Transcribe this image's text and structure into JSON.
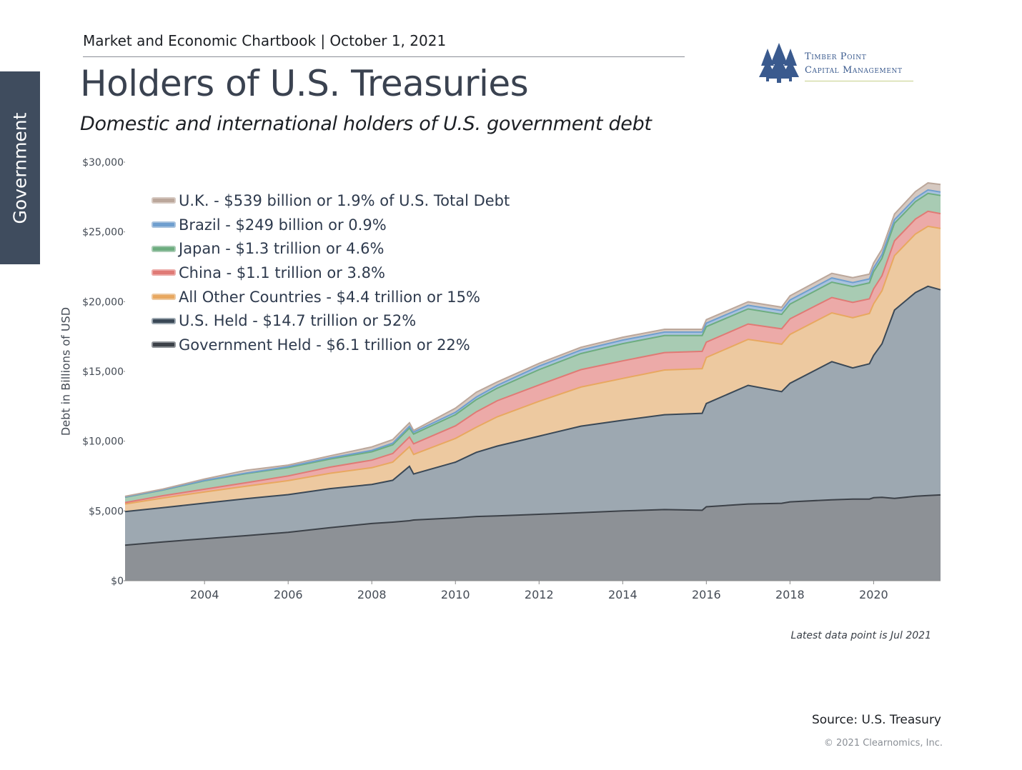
{
  "side_tab": "Government",
  "header": {
    "chartbook": "Market and Economic Chartbook | October 1, 2021",
    "title": "Holders of U.S. Treasuries",
    "subtitle": "Domestic and international holders of U.S. government debt"
  },
  "logo": {
    "line1": "Timber Point",
    "line2": "Capital Management",
    "color": "#3a5a8e"
  },
  "footer": {
    "note": "Latest data point is Jul 2021",
    "source": "Source: U.S. Treasury",
    "copyright": "© 2021 Clearnomics, Inc."
  },
  "chart_data": {
    "type": "area",
    "stacked": true,
    "ylabel": "Debt in Billions of USD",
    "ylim": [
      0,
      30000
    ],
    "xlim": [
      2002.1,
      2021.6
    ],
    "y_ticks": [
      0,
      5000,
      10000,
      15000,
      20000,
      25000,
      30000
    ],
    "y_tick_labels": [
      "$0",
      "$5,000",
      "$10,000",
      "$15,000",
      "$20,000",
      "$25,000",
      "$30,000"
    ],
    "x_ticks": [
      2004,
      2006,
      2008,
      2010,
      2012,
      2014,
      2016,
      2018,
      2020
    ],
    "x_tick_labels": [
      "2004",
      "2006",
      "2008",
      "2010",
      "2012",
      "2014",
      "2016",
      "2018",
      "2020"
    ],
    "legend_position": "top-left",
    "x": [
      2002.1,
      2003,
      2004,
      2005,
      2006,
      2007,
      2008,
      2008.5,
      2008.9,
      2009,
      2010,
      2010.5,
      2011,
      2012,
      2013,
      2014,
      2015,
      2015.9,
      2016,
      2017,
      2017.8,
      2018,
      2019,
      2019.5,
      2019.9,
      2020,
      2020.2,
      2020.5,
      2021,
      2021.3,
      2021.6
    ],
    "series": [
      {
        "name": "Government Held - $6.1 trillion or 22%",
        "color": "#8d9196",
        "line_color": "#3c4148",
        "values": [
          2550,
          2780,
          3010,
          3230,
          3470,
          3800,
          4100,
          4200,
          4300,
          4350,
          4500,
          4600,
          4650,
          4760,
          4880,
          5000,
          5100,
          5050,
          5300,
          5500,
          5550,
          5650,
          5800,
          5850,
          5850,
          5950,
          5980,
          5900,
          6050,
          6100,
          6150
        ]
      },
      {
        "name": "U.S. Held - $14.7 trillion or 52%",
        "color": "#9da8b1",
        "line_color": "#3a4856",
        "values": [
          2400,
          2450,
          2550,
          2650,
          2700,
          2800,
          2800,
          3000,
          3900,
          3300,
          4000,
          4600,
          5000,
          5600,
          6200,
          6500,
          6800,
          6950,
          7400,
          8500,
          8000,
          8500,
          9900,
          9400,
          9700,
          10200,
          11000,
          13500,
          14600,
          15000,
          14700
        ]
      },
      {
        "name": "All Other Countries - $4.4 trillion or 15%",
        "color": "#edc9a0",
        "line_color": "#e8a860",
        "values": [
          550,
          700,
          800,
          900,
          1000,
          1100,
          1200,
          1300,
          1400,
          1400,
          1700,
          1800,
          2100,
          2500,
          2800,
          3000,
          3200,
          3200,
          3300,
          3300,
          3400,
          3500,
          3500,
          3600,
          3600,
          3700,
          3800,
          3900,
          4200,
          4300,
          4400
        ]
      },
      {
        "name": "China - $1.1 trillion or 3.8%",
        "color": "#ecaaa8",
        "line_color": "#e07a75",
        "values": [
          100,
          160,
          200,
          250,
          340,
          440,
          540,
          620,
          700,
          760,
          900,
          1100,
          1150,
          1170,
          1250,
          1260,
          1250,
          1240,
          1100,
          1100,
          1100,
          1120,
          1100,
          1100,
          1050,
          1070,
          1080,
          1060,
          1070,
          1080,
          1060
        ]
      },
      {
        "name": "Japan - $1.3 trillion or 4.6%",
        "color": "#a8cbb3",
        "line_color": "#6dad7f",
        "values": [
          380,
          400,
          600,
          650,
          600,
          580,
          600,
          620,
          640,
          700,
          800,
          880,
          900,
          1100,
          1150,
          1230,
          1220,
          1130,
          1110,
          1080,
          1040,
          1050,
          1100,
          1130,
          1150,
          1230,
          1250,
          1260,
          1250,
          1280,
          1300
        ]
      },
      {
        "name": "Brazil - $249 billion or 0.9%",
        "color": "#a8c2de",
        "line_color": "#6f9fcf",
        "values": [
          20,
          20,
          30,
          40,
          60,
          80,
          100,
          120,
          130,
          140,
          170,
          180,
          200,
          250,
          250,
          260,
          250,
          250,
          250,
          260,
          270,
          300,
          300,
          290,
          280,
          270,
          270,
          260,
          250,
          250,
          249
        ]
      },
      {
        "name": "U.K. - $539 billion or 1.9% of U.S. Total Debt",
        "color": "#d6c9c1",
        "line_color": "#bba79b",
        "values": [
          50,
          60,
          100,
          200,
          120,
          150,
          250,
          250,
          250,
          120,
          300,
          350,
          250,
          200,
          200,
          200,
          200,
          200,
          250,
          250,
          250,
          300,
          330,
          350,
          350,
          350,
          380,
          400,
          470,
          500,
          539
        ]
      }
    ]
  }
}
